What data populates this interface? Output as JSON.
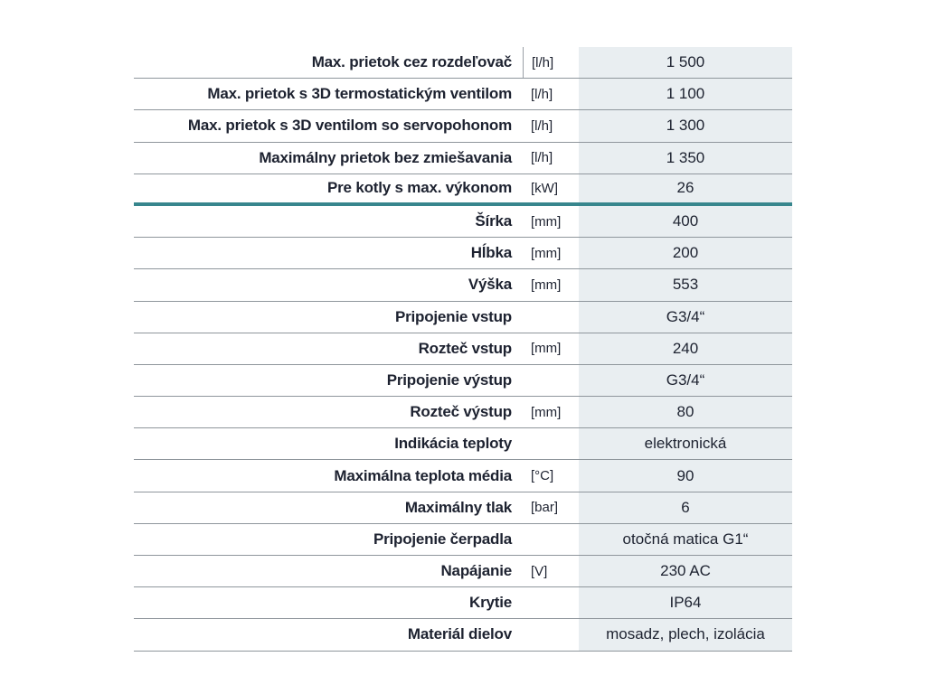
{
  "table": {
    "colors": {
      "value_bg": "#e9eef1",
      "divider_teal": "#37868d",
      "row_border": "#8f969c",
      "text": "#1d2230"
    },
    "rows": [
      {
        "label": "Max. prietok cez rozdeľovač",
        "unit": "[l/h]",
        "value": "1 500"
      },
      {
        "label": "Max. prietok s 3D termostatickým ventilom",
        "unit": "[l/h]",
        "value": "1 100"
      },
      {
        "label": "Max. prietok s 3D ventilom so servopohonom",
        "unit": "[l/h]",
        "value": "1 300"
      },
      {
        "label": "Maximálny prietok bez zmiešavania",
        "unit": "[l/h]",
        "value": "1 350"
      },
      {
        "label": "Pre kotly s max. výkonom",
        "unit": "[kW]",
        "value": "26",
        "divider_after": true
      },
      {
        "label": "Šírka",
        "unit": "[mm]",
        "value": "400"
      },
      {
        "label": "Hĺbka",
        "unit": "[mm]",
        "value": "200"
      },
      {
        "label": "Výška",
        "unit": "[mm]",
        "value": "553"
      },
      {
        "label": "Pripojenie vstup",
        "unit": "",
        "value": "G3/4“"
      },
      {
        "label": "Rozteč vstup",
        "unit": "[mm]",
        "value": "240"
      },
      {
        "label": "Pripojenie výstup",
        "unit": "",
        "value": "G3/4“"
      },
      {
        "label": "Rozteč výstup",
        "unit": "[mm]",
        "value": "80"
      },
      {
        "label": "Indikácia teploty",
        "unit": "",
        "value": "elektronická"
      },
      {
        "label": "Maximálna teplota média",
        "unit": "[°C]",
        "value": "90"
      },
      {
        "label": "Maximálny tlak",
        "unit": "[bar]",
        "value": "6"
      },
      {
        "label": "Pripojenie čerpadla",
        "unit": "",
        "value": "otočná matica G1“"
      },
      {
        "label": "Napájanie",
        "unit": "[V]",
        "value": "230 AC"
      },
      {
        "label": "Krytie",
        "unit": "",
        "value": "IP64"
      },
      {
        "label": "Materiál dielov",
        "unit": "",
        "value": "mosadz, plech, izolácia"
      }
    ]
  }
}
